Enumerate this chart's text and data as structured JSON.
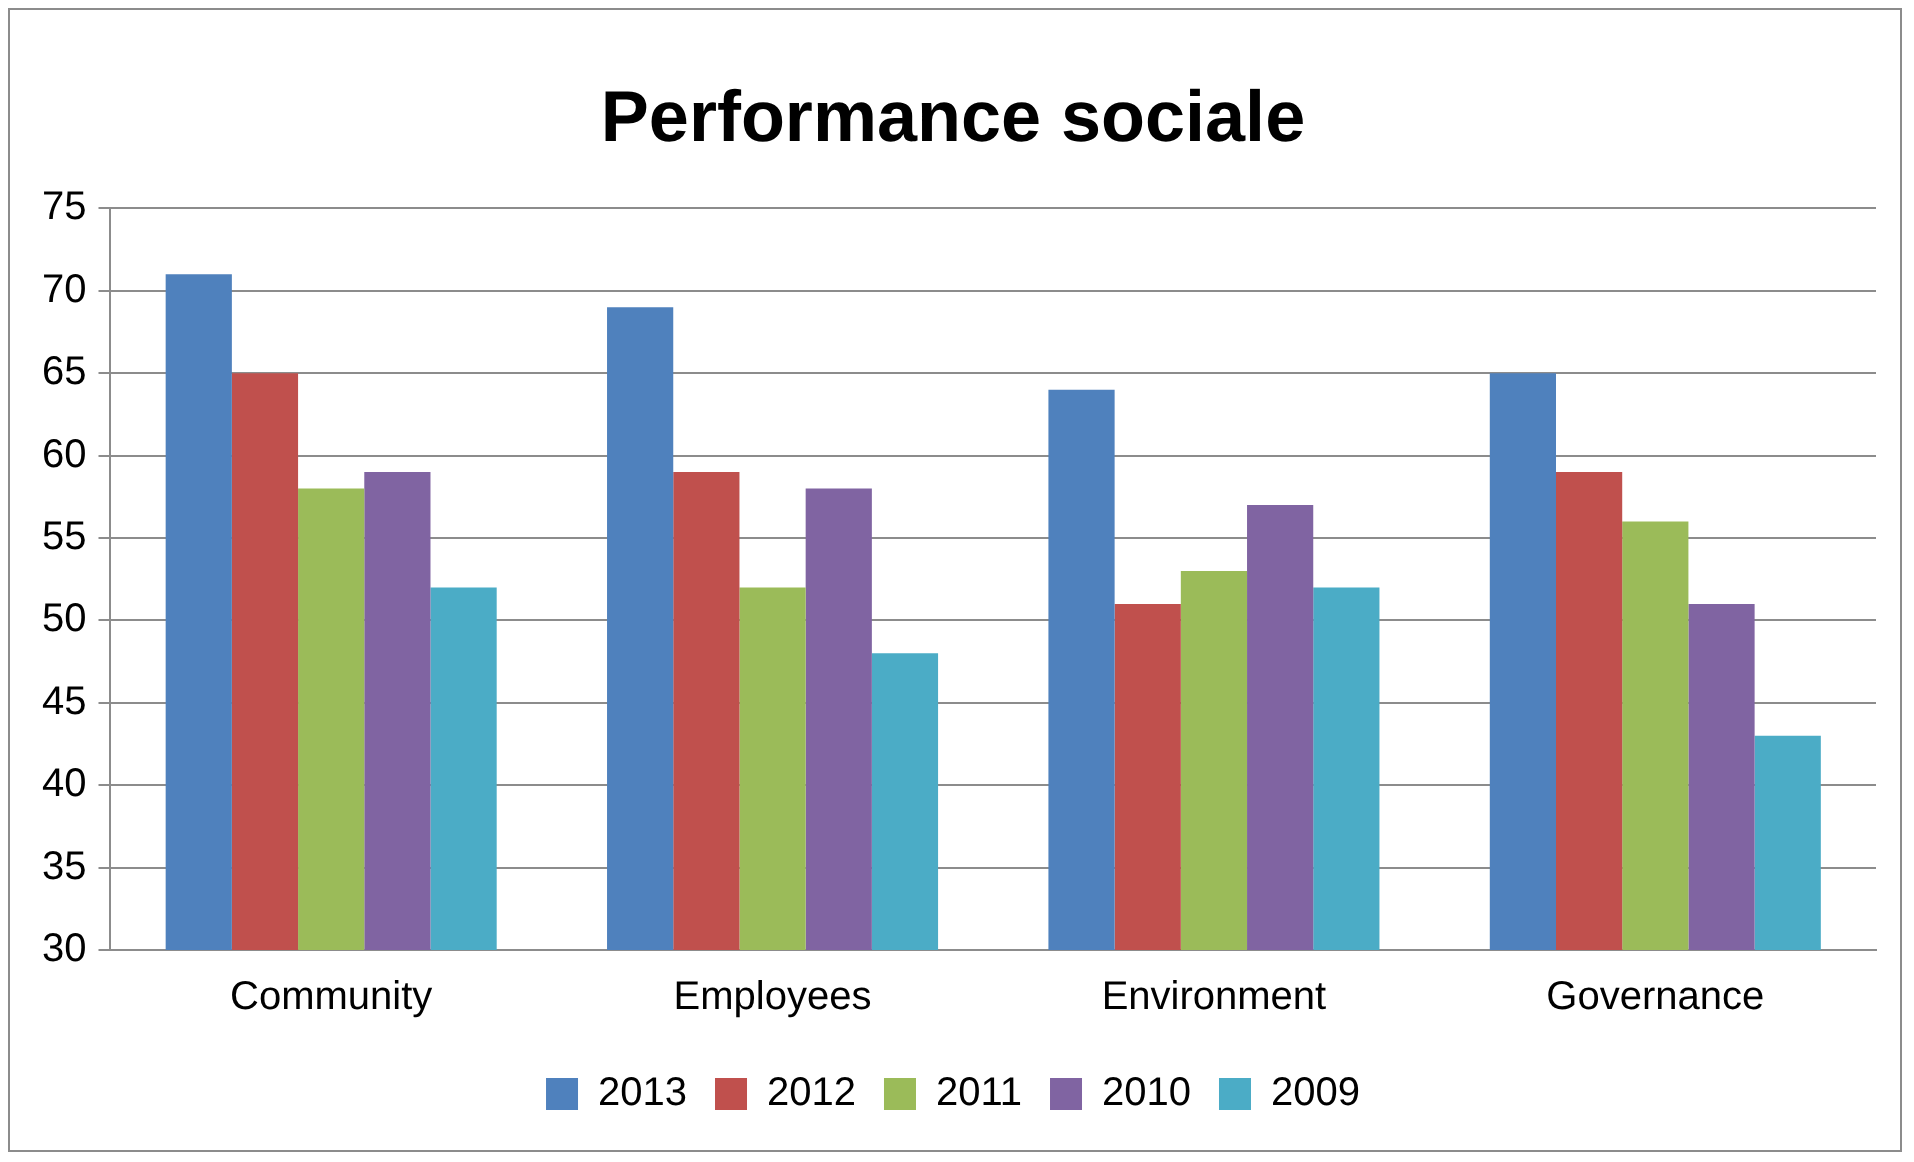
{
  "chart_data": {
    "type": "bar",
    "title": "Performance sociale",
    "categories": [
      "Community",
      "Employees",
      "Environment",
      "Governance"
    ],
    "series": [
      {
        "name": "2013",
        "color": "#4f81bd",
        "values": [
          71,
          69,
          64,
          65
        ]
      },
      {
        "name": "2012",
        "color": "#c0504d",
        "values": [
          65,
          59,
          51,
          59
        ]
      },
      {
        "name": "2011",
        "color": "#9bbb59",
        "values": [
          58,
          52,
          53,
          56
        ]
      },
      {
        "name": "2010",
        "color": "#8064a2",
        "values": [
          59,
          58,
          57,
          51
        ]
      },
      {
        "name": "2009",
        "color": "#4bacc6",
        "values": [
          52,
          48,
          52,
          43
        ]
      }
    ],
    "ylim": [
      30,
      75
    ],
    "yticks": [
      30,
      35,
      40,
      45,
      50,
      55,
      60,
      65,
      70,
      75
    ],
    "grid": "y",
    "legend": "bottom"
  }
}
